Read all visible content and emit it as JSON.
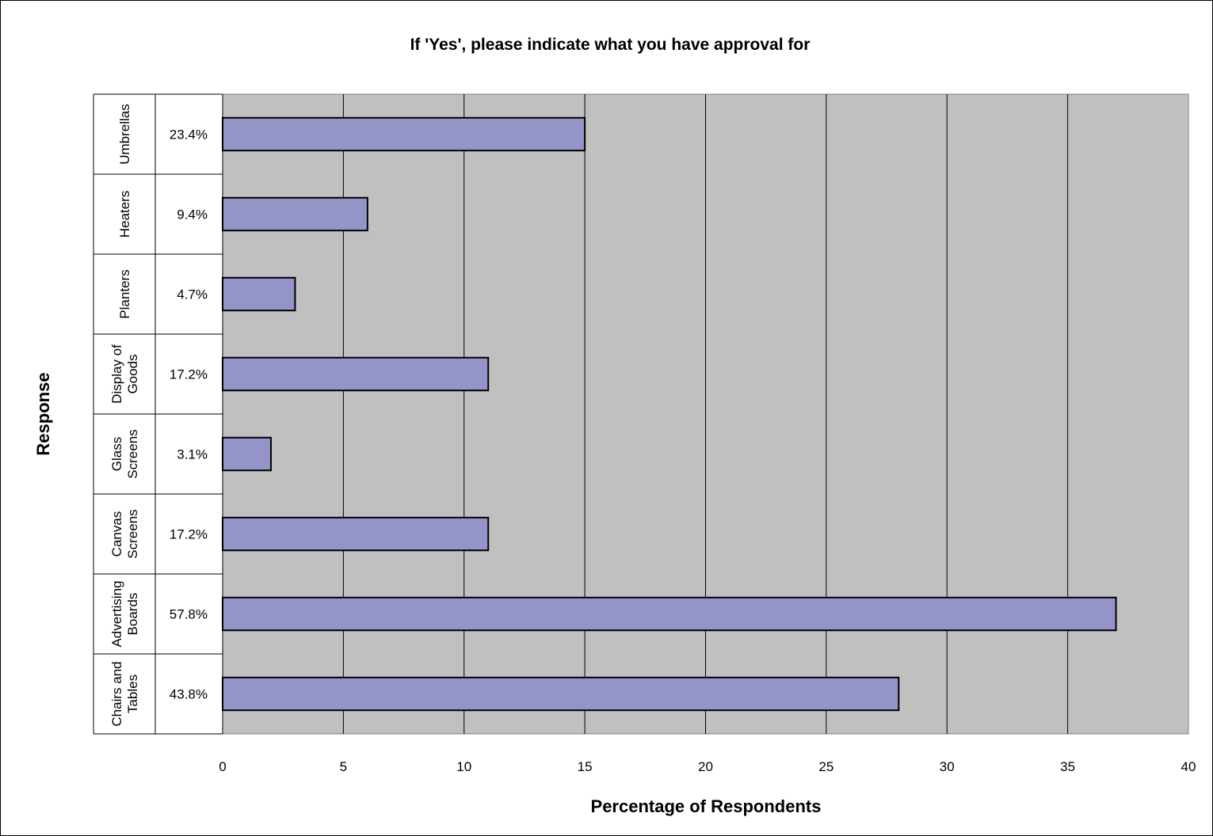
{
  "chart_data": {
    "type": "bar",
    "orientation": "horizontal",
    "title": "If 'Yes', please indicate what you have approval for",
    "xlabel": "Percentage of Respondents",
    "ylabel": "Response",
    "xlim": [
      0,
      40
    ],
    "x_ticks": [
      "0",
      "5",
      "10",
      "15",
      "20",
      "25",
      "30",
      "35",
      "40"
    ],
    "categories": [
      [
        "Umbrellas"
      ],
      [
        "Heaters"
      ],
      [
        "Planters"
      ],
      [
        "Display of",
        "Goods"
      ],
      [
        "Glass",
        "Screens"
      ],
      [
        "Canvas",
        "Screens"
      ],
      [
        "Advertising",
        "Boards"
      ],
      [
        "Chairs and",
        "Tables"
      ]
    ],
    "values": [
      15,
      6,
      3,
      11,
      2,
      11,
      37,
      28
    ],
    "percent_labels": [
      "23.4%",
      "9.4%",
      "4.7%",
      "17.2%",
      "3.1%",
      "17.2%",
      "57.8%",
      "43.8%"
    ],
    "grid": true,
    "colors": {
      "plot_background": "#c0c0c0",
      "bar_fill": "#9494c8",
      "bar_stroke": "#000000",
      "gridline": "#000000"
    }
  }
}
